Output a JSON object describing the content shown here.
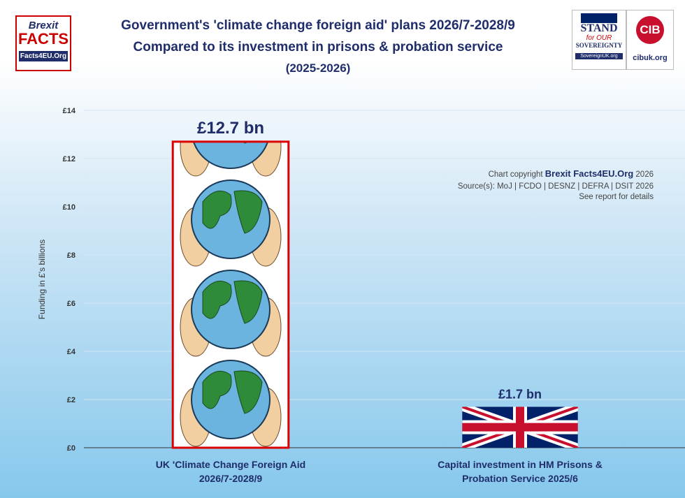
{
  "chart_data": {
    "type": "bar",
    "title": [
      "Government's 'climate change foreign aid' plans 2026/7-2028/9",
      "Compared to its investment in prisons & probation service",
      "(2025-2026)"
    ],
    "y_label": "Funding in £'s billions",
    "categories": [
      "UK 'Climate Change Foreign Aid 2026/7-2028/9",
      "Capital investment in HM Prisons & Probation Service 2025/6"
    ],
    "values": [
      12.7,
      1.7
    ],
    "value_labels": [
      "£12.7 bn",
      "£1.7 bn"
    ],
    "ylim": [
      0,
      14
    ],
    "yticks": [
      {
        "value": 0,
        "label": "£0"
      },
      {
        "value": 2,
        "label": "£2"
      },
      {
        "value": 4,
        "label": "£4"
      },
      {
        "value": 6,
        "label": "£6"
      },
      {
        "value": 8,
        "label": "£8"
      },
      {
        "value": 10,
        "label": "£10"
      },
      {
        "value": 12,
        "label": "£12"
      },
      {
        "value": 14,
        "label": "£14"
      }
    ],
    "grid": true,
    "annotations": {
      "copyright_prefix": "Chart copyright",
      "copyright_brand": "Brexit Facts4EU.Org",
      "copyright_year": "2026",
      "sources": "Source(s): MoJ | FCDO | DESNZ | DEFRA | DSIT 2026",
      "note": "See report for details"
    }
  },
  "logos": {
    "brexit_top": "Brexit",
    "brexit_main": "FACTS",
    "brexit_url": "Facts4EU.Org",
    "stand": "STAND",
    "for_our": "for OUR",
    "sovereignty": "SOVEREIGNTY",
    "sovereign_url": "SovereignUK.org",
    "cib": "CIB",
    "cib_url": "cibuk.org"
  }
}
